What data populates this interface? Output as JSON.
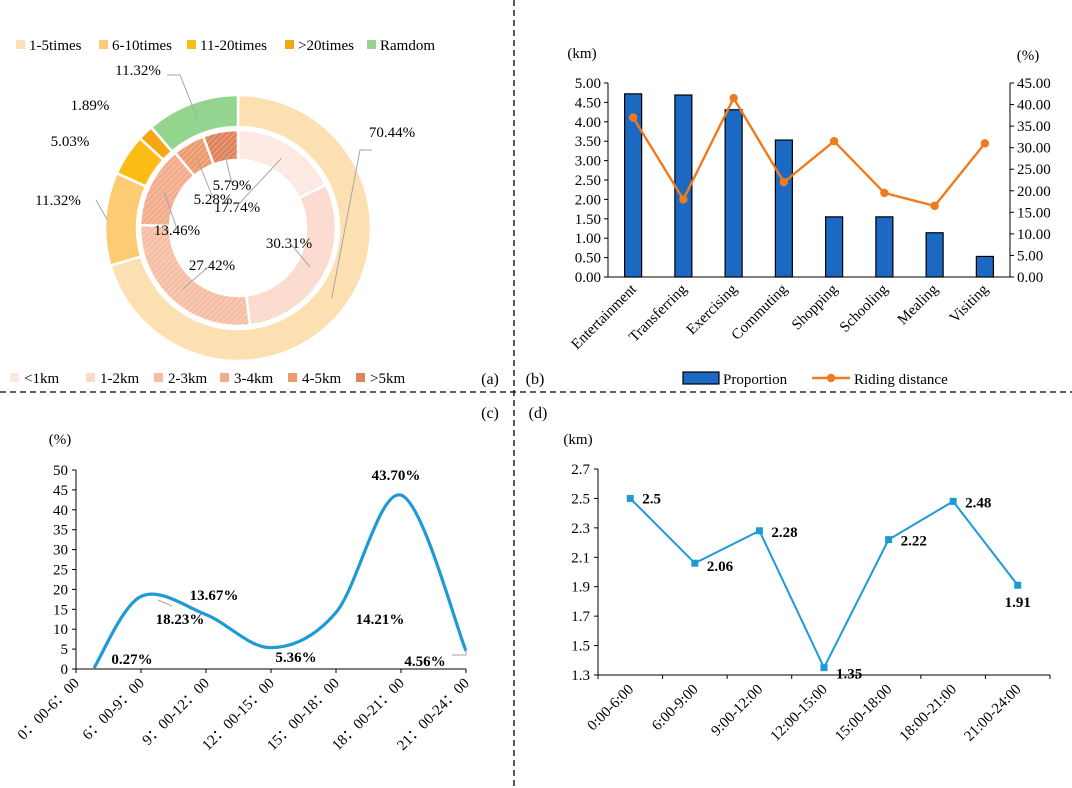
{
  "chart_data": [
    {
      "panel": "(a)",
      "type": "pie",
      "subtype": "nested-donut",
      "outer_ring": {
        "legend": [
          "1-5times",
          "6-10times",
          "11-20times",
          ">20times",
          "Ramdom"
        ],
        "values": [
          70.44,
          11.32,
          5.03,
          1.89,
          11.32
        ],
        "labels": [
          "70.44%",
          "11.32%",
          "5.03%",
          "1.89%",
          "11.32%"
        ],
        "colors": [
          "#fde0b2",
          "#fdcb73",
          "#fbbc13",
          "#f5a712",
          "#93d58e"
        ]
      },
      "inner_ring": {
        "legend": [
          "<1km",
          "1-2km",
          "2-3km",
          "3-4km",
          "4-5km",
          ">5km"
        ],
        "values": [
          17.74,
          30.31,
          27.42,
          13.46,
          5.28,
          5.79
        ],
        "labels": [
          "17.74%",
          "30.31%",
          "27.42%",
          "13.46%",
          "5.28%",
          "5.79%"
        ],
        "colors": [
          "#fde7e1",
          "#fbd9cc",
          "#f6bea4",
          "#f3ac8c",
          "#ed9a6e",
          "#e0835c"
        ]
      }
    },
    {
      "panel": "(b)",
      "type": "bar",
      "categories": [
        "Entertainment",
        "Transferring",
        "Exercising",
        "Commuting",
        "Shopping",
        "Schooling",
        "Mealing",
        "Visiting"
      ],
      "series": [
        {
          "name": "Proportion",
          "axis": "left",
          "kind": "bar",
          "color": "#1c69c4",
          "values": [
            4.72,
            4.69,
            4.31,
            3.53,
            1.55,
            1.55,
            1.14,
            0.53
          ]
        },
        {
          "name": "Riding distance",
          "axis": "right",
          "kind": "line",
          "color": "#f07b1f",
          "values": [
            37.0,
            18.0,
            41.5,
            22.0,
            31.5,
            19.5,
            16.5,
            31.0
          ]
        }
      ],
      "ylabel_left": "(km)",
      "ylabel_right": "(%)",
      "ylim_left": [
        0,
        5
      ],
      "ylim_right": [
        0,
        45
      ],
      "yticks_left": [
        "0.00",
        "0.50",
        "1.00",
        "1.50",
        "2.00",
        "2.50",
        "3.00",
        "3.50",
        "4.00",
        "4.50",
        "5.00"
      ],
      "yticks_right": [
        "0.00",
        "5.00",
        "10.00",
        "15.00",
        "20.00",
        "25.00",
        "30.00",
        "35.00",
        "40.00",
        "45.00"
      ]
    },
    {
      "panel": "(c)",
      "type": "line",
      "smooth": true,
      "categories": [
        "0:00-6:00",
        "6:00-9:00",
        "9:00-12:00",
        "12:00-15:00",
        "15:00-18:00",
        "18:00-21:00",
        "21:00-24:00"
      ],
      "tick_labels": [
        "0：00-6：00",
        "6：00-9：00",
        "9：00-12：00",
        "12：00-15：00",
        "15：00-18：00",
        "18：00-21：00",
        "21：00-24：00"
      ],
      "values": [
        0.27,
        18.23,
        13.67,
        5.36,
        14.21,
        43.7,
        4.56
      ],
      "data_labels": [
        "0.27%",
        "18.23%",
        "13.67%",
        "5.36%",
        "14.21%",
        "43.70%",
        "4.56%"
      ],
      "ylabel": "(%)",
      "ylim": [
        0,
        50
      ],
      "yticks": [
        "0",
        "5",
        "10",
        "15",
        "20",
        "25",
        "30",
        "35",
        "40",
        "45",
        "50"
      ],
      "color": "#1e9ad6"
    },
    {
      "panel": "(d)",
      "type": "line",
      "categories": [
        "0:00-6:00",
        "6:00-9:00",
        "9:00-12:00",
        "12:00-15:00",
        "15:00-18:00",
        "18:00-21:00",
        "21:00-24:00"
      ],
      "values": [
        2.5,
        2.06,
        2.28,
        1.35,
        2.22,
        2.48,
        1.91
      ],
      "data_labels": [
        "2.5",
        "2.06",
        "2.28",
        "1.35",
        "2.22",
        "2.48",
        "1.91"
      ],
      "ylabel": "(km)",
      "ylim": [
        1.3,
        2.7
      ],
      "yticks": [
        "1.3",
        "1.5",
        "1.7",
        "1.9",
        "2.1",
        "2.3",
        "2.5",
        "2.7"
      ],
      "color": "#1e9ad6"
    }
  ]
}
